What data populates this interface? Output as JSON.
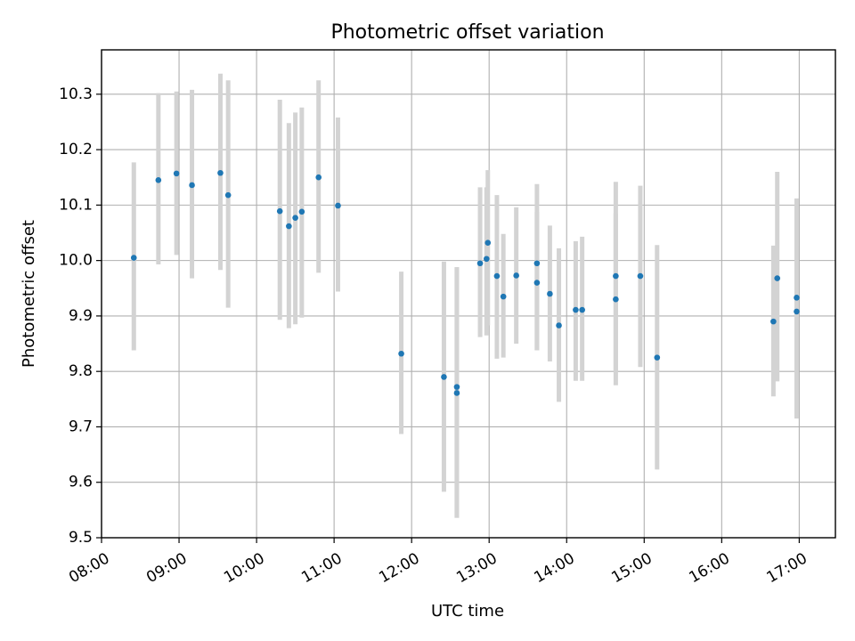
{
  "chart_data": {
    "type": "scatter",
    "title": "Photometric offset variation",
    "xlabel": "UTC time",
    "ylabel": "Photometric offset",
    "x_axis": "time",
    "xlim": [
      "08:00",
      "17:28"
    ],
    "ylim": [
      9.5,
      10.38
    ],
    "x_ticks": [
      "08:00",
      "09:00",
      "10:00",
      "11:00",
      "12:00",
      "13:00",
      "14:00",
      "15:00",
      "16:00",
      "17:00"
    ],
    "y_ticks": [
      "9.5",
      "9.6",
      "9.7",
      "9.8",
      "9.9",
      "10.0",
      "10.1",
      "10.2",
      "10.3"
    ],
    "grid": true,
    "colors": {
      "point": "#1f77b4",
      "errorbar": "#d3d3d3",
      "grid": "#b0b0b0"
    },
    "series": [
      {
        "x": [
          "08:25",
          "08:44",
          "08:58",
          "09:10",
          "09:32",
          "09:38",
          "10:18",
          "10:25",
          "10:30",
          "10:35",
          "10:48",
          "11:03",
          "11:52",
          "12:25",
          "12:35",
          "12:35",
          "12:53",
          "12:58",
          "12:59",
          "13:06",
          "13:11",
          "13:21",
          "13:37",
          "13:37",
          "13:47",
          "13:54",
          "14:07",
          "14:12",
          "14:38",
          "14:38",
          "14:57",
          "15:10",
          "16:40",
          "16:43",
          "16:58",
          "16:58"
        ],
        "y": [
          10.005,
          10.145,
          10.157,
          10.136,
          10.158,
          10.118,
          10.089,
          10.062,
          10.077,
          10.088,
          10.15,
          10.099,
          9.832,
          9.79,
          9.772,
          9.761,
          9.995,
          10.003,
          10.032,
          9.972,
          9.935,
          9.973,
          9.995,
          9.96,
          9.94,
          9.883,
          9.911,
          9.911,
          9.93,
          9.972,
          9.972,
          9.825,
          9.89,
          9.968,
          9.908,
          9.933
        ],
        "yerr_low": [
          9.838,
          9.993,
          10.01,
          9.968,
          9.983,
          9.915,
          9.893,
          9.878,
          9.885,
          9.897,
          9.978,
          9.944,
          9.687,
          9.583,
          9.536,
          9.536,
          9.862,
          9.865,
          9.883,
          9.823,
          9.825,
          9.85,
          9.838,
          9.838,
          9.818,
          9.745,
          9.783,
          9.783,
          9.775,
          9.8,
          9.808,
          9.623,
          9.755,
          9.782,
          9.715,
          9.758
        ],
        "yerr_high": [
          10.177,
          10.302,
          10.305,
          10.308,
          10.337,
          10.325,
          10.29,
          10.248,
          10.267,
          10.276,
          10.325,
          10.258,
          9.98,
          9.998,
          9.988,
          9.988,
          10.132,
          10.132,
          10.163,
          10.118,
          10.048,
          10.096,
          10.088,
          10.138,
          10.063,
          10.022,
          10.035,
          10.043,
          10.085,
          10.142,
          10.135,
          10.028,
          10.027,
          10.16,
          10.028,
          10.112
        ]
      }
    ]
  }
}
